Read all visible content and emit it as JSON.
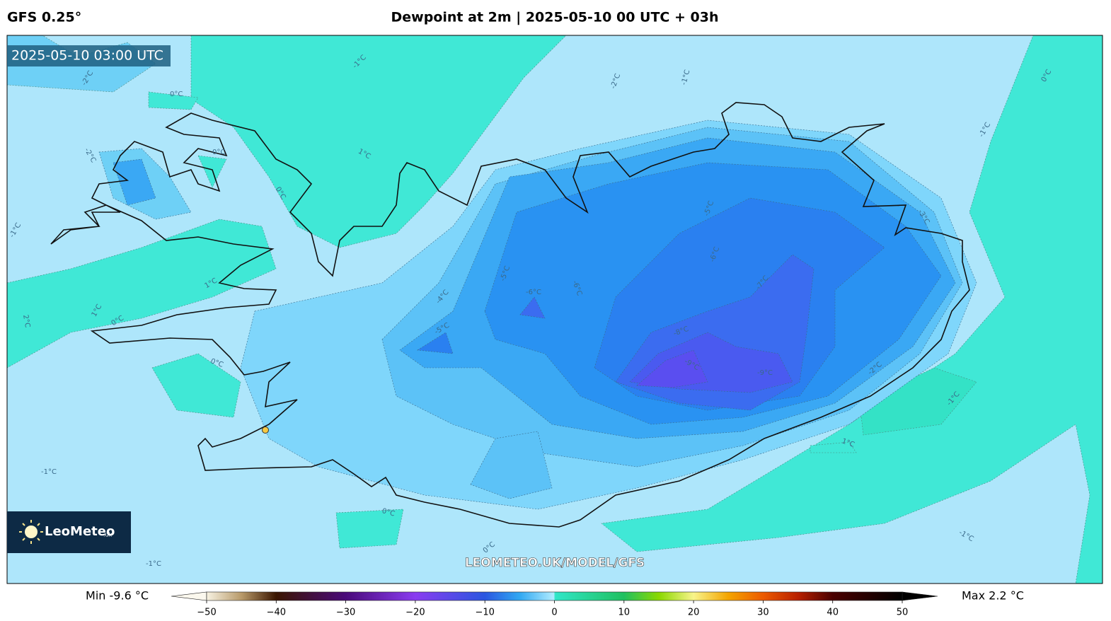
{
  "header": {
    "model": "GFS 0.25°",
    "title": "Dewpoint at 2m | 2025-05-10 00 UTC + 03h"
  },
  "map": {
    "valid_time": "2025-05-10 03:00 UTC",
    "watermark": "LEOMETEO.UK/MODEL/GFS",
    "logo": "LeoMeteo",
    "logo_suffix": ".uk",
    "contour_labels": [
      "-2°C",
      "-1°C",
      "0°C",
      "-2°C",
      "0°C",
      "1°C",
      "0°C",
      "-1°C",
      "-2°C",
      "-1°C",
      "0°C",
      "-1°C",
      "-3°C",
      "-5°C",
      "-6°C",
      "-7°C",
      "-5°C",
      "-6°C",
      "-6°C",
      "-4°C",
      "-5°C",
      "-8°C",
      "-9°C",
      "-9°C",
      "-2°C",
      "-1°C",
      "1°C",
      "1°C",
      "1°C",
      "2°C",
      "0°C",
      "0°C",
      "-1°C",
      "0°C",
      "0°C",
      "-1°C",
      "-1°C"
    ]
  },
  "colorbar": {
    "min_label": "Min -9.6 °C",
    "max_label": "Max 2.2 °C",
    "lim": [
      -50,
      50
    ],
    "ticks": [
      {
        "value": -50,
        "label": "−50"
      },
      {
        "value": -40,
        "label": "−40"
      },
      {
        "value": -30,
        "label": "−30"
      },
      {
        "value": -20,
        "label": "−20"
      },
      {
        "value": -10,
        "label": "−10"
      },
      0,
      10,
      20,
      30,
      40,
      50
    ]
  }
}
